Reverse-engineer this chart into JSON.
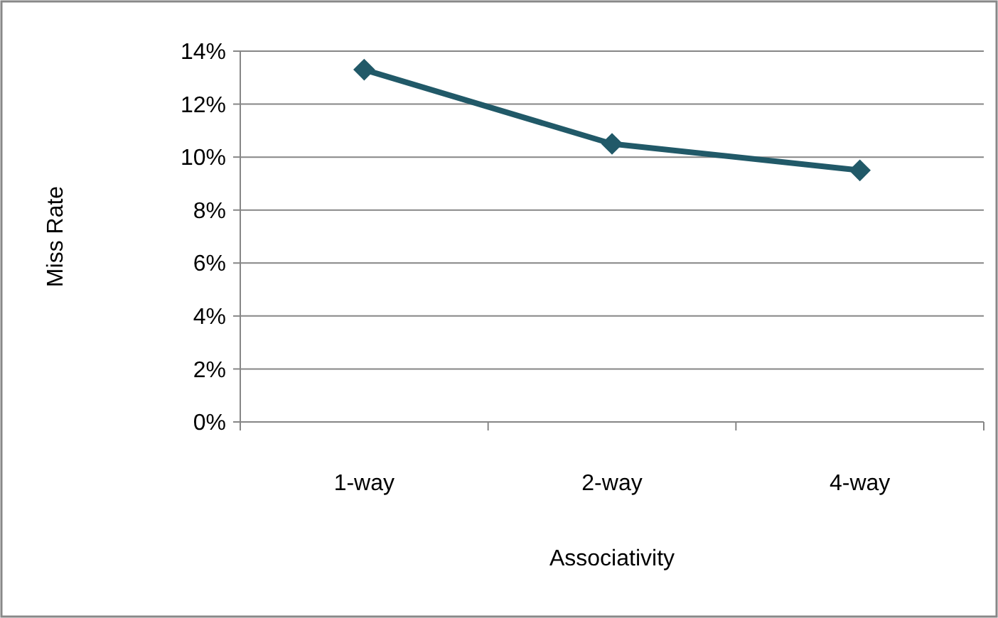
{
  "chart_data": {
    "type": "line",
    "xlabel": "Associativity",
    "ylabel": "Miss Rate",
    "categories": [
      "1-way",
      "2-way",
      "4-way"
    ],
    "series": [
      {
        "color": "#215968",
        "values": [
          13.3,
          10.5,
          9.5
        ]
      }
    ],
    "ylim": [
      0,
      14
    ],
    "yticks": [
      {
        "value": 0,
        "label": "0%"
      },
      {
        "value": 2,
        "label": "2%"
      },
      {
        "value": 4,
        "label": "4%"
      },
      {
        "value": 6,
        "label": "6%"
      },
      {
        "value": 8,
        "label": "8%"
      },
      {
        "value": 10,
        "label": "10%"
      },
      {
        "value": 12,
        "label": "12%"
      },
      {
        "value": 14,
        "label": "14%"
      }
    ],
    "grid": "y",
    "marker": "diamond",
    "line_style": "solid"
  }
}
